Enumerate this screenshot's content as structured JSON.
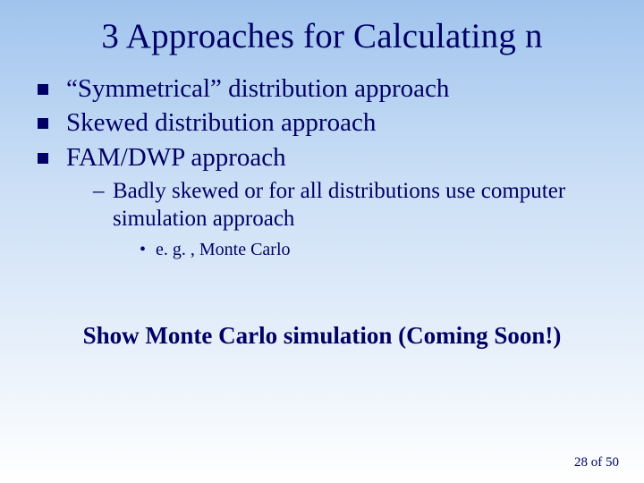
{
  "colors": {
    "text": "#000066",
    "bullet": "#000066",
    "bg_top": "#a0c4ee",
    "bg_mid": "#c8ddf5",
    "bg_low": "#eaf2fb",
    "bg_bottom": "#ffffff"
  },
  "typography": {
    "family": "Times New Roman",
    "title_size_pt": 39,
    "l1_size_pt": 29,
    "l2_size_pt": 25,
    "l3_size_pt": 20,
    "cta_size_pt": 27,
    "pagenum_size_pt": 15
  },
  "title": "3 Approaches for Calculating n",
  "bullets": {
    "b1": "“Symmetrical” distribution approach",
    "b2": "Skewed distribution approach",
    "b3": "FAM/DWP approach",
    "b3_sub1": "Badly skewed or for all distributions use computer simulation approach",
    "b3_sub1_a": "e. g. , Monte Carlo"
  },
  "cta": "Show Monte Carlo simulation (Coming Soon!)",
  "page": {
    "current": "28",
    "sep": " of ",
    "total": "50"
  }
}
